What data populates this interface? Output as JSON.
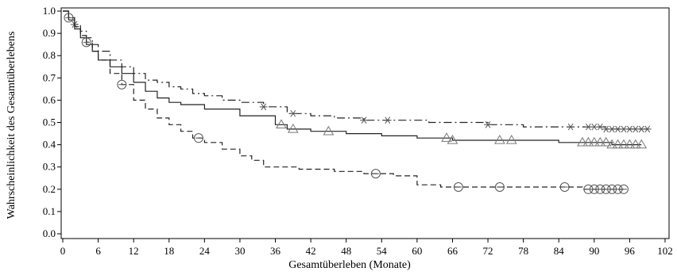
{
  "chart_data": {
    "type": "line",
    "title": "",
    "xlabel": "Gesamtüberleben (Monate)",
    "ylabel": "Wahrscheinlichkeit des Gesamtüberlebens",
    "xlim": [
      0,
      102
    ],
    "ylim": [
      0,
      1.0
    ],
    "x_ticks": [
      0,
      6,
      12,
      18,
      24,
      30,
      36,
      42,
      48,
      54,
      60,
      66,
      72,
      78,
      84,
      90,
      96,
      102
    ],
    "y_ticks": [
      0.0,
      0.1,
      0.2,
      0.3,
      0.4,
      0.5,
      0.6,
      0.7,
      0.8,
      0.9,
      1.0
    ],
    "x_tick_labels": [
      "0",
      "6",
      "12",
      "18",
      "24",
      "30",
      "36",
      "42",
      "48",
      "54",
      "60",
      "66",
      "72",
      "78",
      "84",
      "90",
      "96",
      "102"
    ],
    "y_tick_labels": [
      "0.0",
      "0.1",
      "0.2",
      "0.3",
      "0.4",
      "0.5",
      "0.6",
      "0.7",
      "0.8",
      "0.9",
      "1.0"
    ],
    "grid": false,
    "legend": "none",
    "series": [
      {
        "line_style": "dash-dot",
        "marker": "star",
        "color": "#222222",
        "points": [
          [
            0,
            1.0
          ],
          [
            1,
            0.97
          ],
          [
            2,
            0.94
          ],
          [
            3,
            0.91
          ],
          [
            4,
            0.88
          ],
          [
            5,
            0.85
          ],
          [
            6,
            0.82
          ],
          [
            8,
            0.78
          ],
          [
            10,
            0.75
          ],
          [
            12,
            0.72
          ],
          [
            14,
            0.69
          ],
          [
            16,
            0.68
          ],
          [
            18,
            0.66
          ],
          [
            20,
            0.65
          ],
          [
            22,
            0.63
          ],
          [
            24,
            0.62
          ],
          [
            27,
            0.6
          ],
          [
            30,
            0.59
          ],
          [
            34,
            0.57
          ],
          [
            38,
            0.54
          ],
          [
            42,
            0.53
          ],
          [
            46,
            0.52
          ],
          [
            51,
            0.51
          ],
          [
            56,
            0.51
          ],
          [
            62,
            0.5
          ],
          [
            68,
            0.5
          ],
          [
            72,
            0.49
          ],
          [
            78,
            0.48
          ],
          [
            86,
            0.48
          ],
          [
            92,
            0.47
          ],
          [
            99,
            0.47
          ]
        ],
        "censor_x": [
          2,
          34,
          39,
          51,
          55,
          72,
          86,
          89,
          90,
          91,
          92,
          93,
          94,
          95,
          96,
          97,
          98,
          99
        ]
      },
      {
        "line_style": "solid",
        "marker": "triangle",
        "color": "#222222",
        "points": [
          [
            0,
            1.0
          ],
          [
            1,
            0.96
          ],
          [
            2,
            0.92
          ],
          [
            3,
            0.88
          ],
          [
            4,
            0.85
          ],
          [
            5,
            0.82
          ],
          [
            6,
            0.78
          ],
          [
            8,
            0.75
          ],
          [
            10,
            0.72
          ],
          [
            12,
            0.68
          ],
          [
            14,
            0.64
          ],
          [
            16,
            0.61
          ],
          [
            18,
            0.59
          ],
          [
            20,
            0.58
          ],
          [
            24,
            0.56
          ],
          [
            30,
            0.53
          ],
          [
            36,
            0.49
          ],
          [
            38,
            0.47
          ],
          [
            42,
            0.46
          ],
          [
            48,
            0.45
          ],
          [
            54,
            0.44
          ],
          [
            60,
            0.43
          ],
          [
            66,
            0.42
          ],
          [
            72,
            0.42
          ],
          [
            78,
            0.42
          ],
          [
            84,
            0.41
          ],
          [
            90,
            0.41
          ],
          [
            93,
            0.4
          ],
          [
            98,
            0.4
          ]
        ],
        "censor_x": [
          37,
          39,
          45,
          65,
          66,
          74,
          76,
          88,
          89,
          90,
          91,
          92,
          93,
          94,
          95,
          96,
          97,
          98
        ]
      },
      {
        "line_style": "dashed",
        "marker": "circle",
        "color": "#222222",
        "points": [
          [
            0,
            1.0
          ],
          [
            1,
            0.97
          ],
          [
            2,
            0.93
          ],
          [
            3,
            0.89
          ],
          [
            4,
            0.86
          ],
          [
            5,
            0.82
          ],
          [
            6,
            0.78
          ],
          [
            8,
            0.72
          ],
          [
            10,
            0.67
          ],
          [
            12,
            0.6
          ],
          [
            14,
            0.56
          ],
          [
            16,
            0.52
          ],
          [
            18,
            0.49
          ],
          [
            20,
            0.46
          ],
          [
            22,
            0.43
          ],
          [
            24,
            0.41
          ],
          [
            27,
            0.38
          ],
          [
            30,
            0.35
          ],
          [
            32,
            0.33
          ],
          [
            34,
            0.3
          ],
          [
            40,
            0.29
          ],
          [
            46,
            0.28
          ],
          [
            51,
            0.27
          ],
          [
            56,
            0.26
          ],
          [
            60,
            0.22
          ],
          [
            64,
            0.21
          ],
          [
            72,
            0.21
          ],
          [
            80,
            0.21
          ],
          [
            86,
            0.21
          ],
          [
            88,
            0.2
          ],
          [
            95,
            0.2
          ]
        ],
        "censor_x": [
          1,
          4,
          10,
          23,
          53,
          67,
          74,
          85,
          89,
          90,
          91,
          92,
          93,
          94,
          95
        ]
      }
    ]
  }
}
